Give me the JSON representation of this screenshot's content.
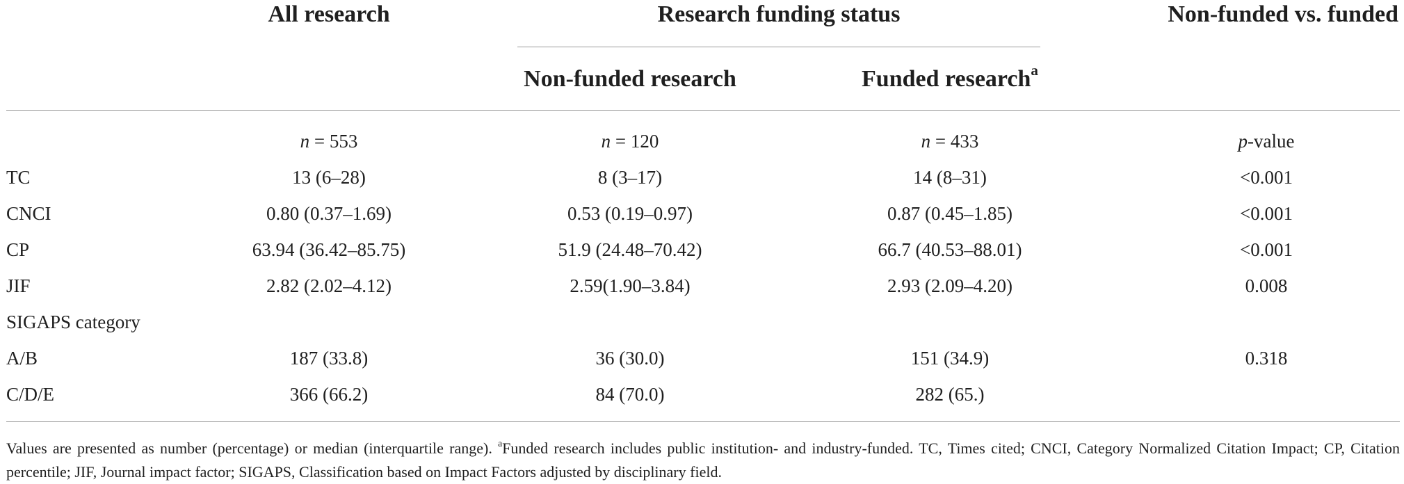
{
  "headers": {
    "all_research": "All research",
    "funding_status": "Research funding status",
    "comparison": "Non-funded vs. funded",
    "non_funded": "Non-funded research",
    "funded": "Funded research",
    "funded_sup": "a"
  },
  "n_row": {
    "all": {
      "n": "n",
      "val": " = 553"
    },
    "non_funded": {
      "n": "n",
      "val": " = 120"
    },
    "funded": {
      "n": "n",
      "val": " = 433"
    },
    "p": {
      "p": "p",
      "val": "-value"
    }
  },
  "rows": [
    {
      "label": "TC",
      "all": "13 (6–28)",
      "non_funded": "8 (3–17)",
      "funded": "14 (8–31)",
      "p": "<0.001"
    },
    {
      "label": "CNCI",
      "all": "0.80 (0.37–1.69)",
      "non_funded": "0.53 (0.19–0.97)",
      "funded": "0.87 (0.45–1.85)",
      "p": "<0.001"
    },
    {
      "label": "CP",
      "all": "63.94 (36.42–85.75)",
      "non_funded": "51.9 (24.48–70.42)",
      "funded": "66.7 (40.53–88.01)",
      "p": "<0.001"
    },
    {
      "label": "JIF",
      "all": "2.82 (2.02–4.12)",
      "non_funded": "2.59(1.90–3.84)",
      "funded": "2.93 (2.09–4.20)",
      "p": "0.008"
    },
    {
      "label": "SIGAPS category",
      "all": "",
      "non_funded": "",
      "funded": "",
      "p": ""
    },
    {
      "label": "A/B",
      "all": "187 (33.8)",
      "non_funded": "36 (30.0)",
      "funded": "151 (34.9)",
      "p": "0.318"
    },
    {
      "label": "C/D/E",
      "all": "366 (66.2)",
      "non_funded": "84 (70.0)",
      "funded": "282 (65.)",
      "p": ""
    }
  ],
  "footnote": {
    "part1": "Values are presented as number (percentage) or median (interquartile range). ",
    "sup": "a",
    "part2": "Funded research includes public institution- and industry-funded. TC, Times cited; CNCI, Category Normalized Citation Impact; CP, Citation percentile; JIF, Journal impact factor; SIGAPS, Classification based on Impact Factors adjusted by disciplinary field."
  }
}
